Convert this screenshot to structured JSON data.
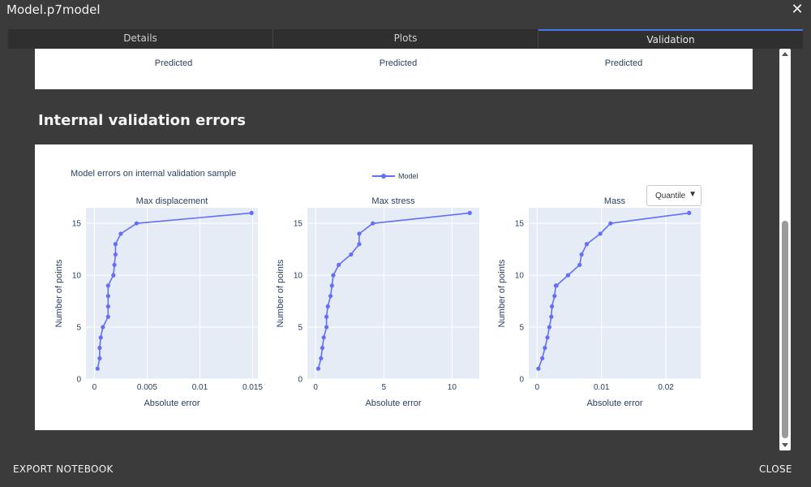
{
  "window": {
    "title": "Model.p7model",
    "close_glyph": "✕"
  },
  "tabs": [
    {
      "label": "Details",
      "active": false
    },
    {
      "label": "Plots",
      "active": false
    },
    {
      "label": "Validation",
      "active": true
    }
  ],
  "top_card": {
    "xlabels": [
      "Predicted",
      "Predicted",
      "Predicted"
    ]
  },
  "section": {
    "heading": "Internal validation errors"
  },
  "plot": {
    "title": "Model errors on internal validation sample",
    "legend": "Model",
    "dropdown": {
      "selected": "Quantile",
      "arrow": "▼"
    },
    "ylabel": "Number of points",
    "xlabel": "Absolute error",
    "line_color": "#636efa",
    "bg_color": "#e5ecf6"
  },
  "chart_data": [
    {
      "type": "line",
      "title": "Max displacement",
      "xlabel": "Absolute error",
      "ylabel": "Number of points",
      "xlim": [
        -0.0008,
        0.0155
      ],
      "ylim": [
        0,
        16.5
      ],
      "xticks": [
        0,
        0.005,
        0.01,
        0.015
      ],
      "xtick_labels": [
        "0",
        "0.005",
        "0.01",
        "0.015"
      ],
      "yticks": [
        0,
        5,
        10,
        15
      ],
      "x": [
        0.0003,
        0.0005,
        0.0005,
        0.0006,
        0.0008,
        0.0013,
        0.0013,
        0.0013,
        0.0013,
        0.0018,
        0.0019,
        0.002,
        0.002,
        0.0025,
        0.004,
        0.0149
      ],
      "y": [
        1,
        2,
        3,
        4,
        5,
        6,
        7,
        8,
        9,
        10,
        11,
        12,
        13,
        14,
        15,
        16
      ],
      "series": [
        {
          "name": "Model"
        }
      ]
    },
    {
      "type": "line",
      "title": "Max stress",
      "xlabel": "Absolute error",
      "ylabel": "Number of points",
      "xlim": [
        -0.6,
        12
      ],
      "ylim": [
        0,
        16.5
      ],
      "xticks": [
        0,
        5,
        10
      ],
      "xtick_labels": [
        "0",
        "5",
        "10"
      ],
      "yticks": [
        0,
        5,
        10,
        15
      ],
      "x": [
        0.2,
        0.4,
        0.5,
        0.6,
        0.8,
        0.8,
        0.9,
        1.1,
        1.2,
        1.3,
        1.7,
        2.6,
        3.2,
        3.2,
        4.2,
        11.3
      ],
      "y": [
        1,
        2,
        3,
        4,
        5,
        6,
        7,
        8,
        9,
        10,
        11,
        12,
        13,
        14,
        15,
        16
      ],
      "series": [
        {
          "name": "Model"
        }
      ]
    },
    {
      "type": "line",
      "title": "Mass",
      "xlabel": "Absolute error",
      "ylabel": "Number of points",
      "xlim": [
        -0.0013,
        0.0254
      ],
      "ylim": [
        0,
        16.5
      ],
      "xticks": [
        0,
        0.01,
        0.02
      ],
      "xtick_labels": [
        "0",
        "0.01",
        "0.02"
      ],
      "yticks": [
        0,
        5,
        10,
        15
      ],
      "x": [
        0.0002,
        0.0008,
        0.0012,
        0.0016,
        0.0019,
        0.0022,
        0.0023,
        0.0027,
        0.0029,
        0.003,
        0.0048,
        0.0066,
        0.0069,
        0.0077,
        0.0098,
        0.0114,
        0.0236
      ],
      "y": [
        1,
        2,
        3,
        4,
        5,
        6,
        7,
        8,
        9,
        9,
        10,
        11,
        12,
        13,
        14,
        15,
        16
      ],
      "series": [
        {
          "name": "Model"
        }
      ]
    }
  ],
  "footer": {
    "export_label": "EXPORT NOTEBOOK",
    "close_label": "CLOSE"
  }
}
